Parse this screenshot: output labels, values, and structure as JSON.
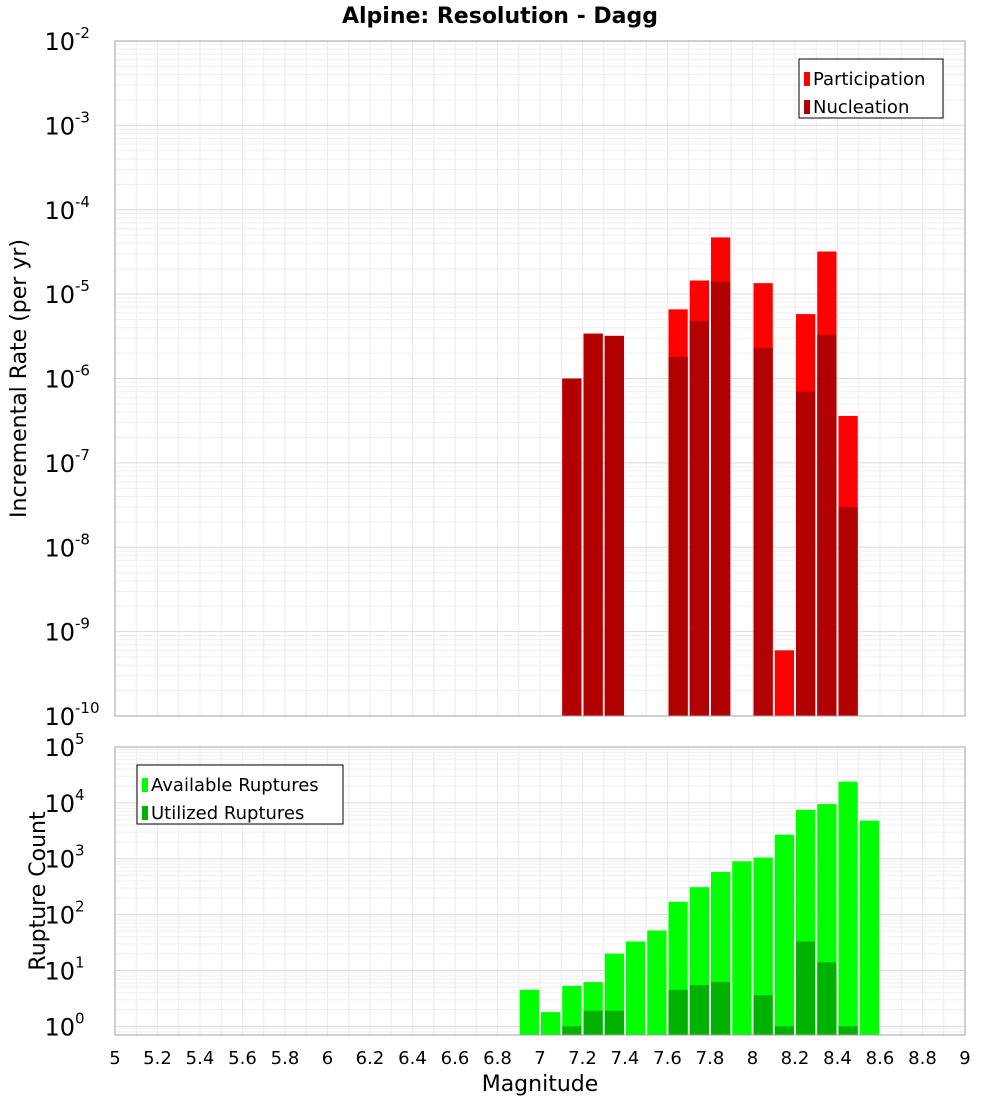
{
  "chart_data": [
    {
      "type": "bar",
      "title": "Alpine: Resolution - Dagg",
      "xlabel": "Magnitude",
      "ylabel": "Incremental Rate (per yr)",
      "xlim": [
        5,
        9
      ],
      "ylim": [
        1e-10,
        0.01
      ],
      "yscale": "log",
      "grid": true,
      "legend_position": "top-right",
      "bin_width": 0.1,
      "yticks": [
        {
          "base": "10",
          "exp": "-10"
        },
        {
          "base": "10",
          "exp": "-9"
        },
        {
          "base": "10",
          "exp": "-8"
        },
        {
          "base": "10",
          "exp": "-7"
        },
        {
          "base": "10",
          "exp": "-6"
        },
        {
          "base": "10",
          "exp": "-5"
        },
        {
          "base": "10",
          "exp": "-4"
        },
        {
          "base": "10",
          "exp": "-3"
        },
        {
          "base": "10",
          "exp": "-2"
        }
      ],
      "series": [
        {
          "name": "Participation",
          "color": "#ff0000",
          "points": [
            {
              "x": 7.15,
              "y": 1e-06
            },
            {
              "x": 7.25,
              "y": 3.4e-06
            },
            {
              "x": 7.35,
              "y": 3.2e-06
            },
            {
              "x": 7.65,
              "y": 6.6e-06
            },
            {
              "x": 7.75,
              "y": 1.45e-05
            },
            {
              "x": 7.85,
              "y": 4.7e-05
            },
            {
              "x": 8.05,
              "y": 1.35e-05
            },
            {
              "x": 8.15,
              "y": 6e-10
            },
            {
              "x": 8.25,
              "y": 5.8e-06
            },
            {
              "x": 8.35,
              "y": 3.2e-05
            },
            {
              "x": 8.45,
              "y": 3.6e-07
            }
          ]
        },
        {
          "name": "Nucleation",
          "color": "#b20000",
          "points": [
            {
              "x": 7.15,
              "y": 1e-06
            },
            {
              "x": 7.25,
              "y": 3.4e-06
            },
            {
              "x": 7.35,
              "y": 3.2e-06
            },
            {
              "x": 7.65,
              "y": 1.8e-06
            },
            {
              "x": 7.75,
              "y": 4.8e-06
            },
            {
              "x": 7.85,
              "y": 1.4e-05
            },
            {
              "x": 8.05,
              "y": 2.3e-06
            },
            {
              "x": 8.25,
              "y": 7e-07
            },
            {
              "x": 8.35,
              "y": 3.3e-06
            },
            {
              "x": 8.45,
              "y": 3e-08
            }
          ]
        }
      ]
    },
    {
      "type": "bar",
      "xlabel": "Magnitude",
      "ylabel": "Rupture Count",
      "xlim": [
        5,
        9
      ],
      "ylim": [
        0.7,
        100000
      ],
      "yscale": "log",
      "grid": true,
      "legend_position": "top-left",
      "bin_width": 0.1,
      "xticks": [
        "5",
        "5.2",
        "5.4",
        "5.6",
        "5.8",
        "6",
        "6.2",
        "6.4",
        "6.6",
        "6.8",
        "7",
        "7.2",
        "7.4",
        "7.6",
        "7.8",
        "8",
        "8.2",
        "8.4",
        "8.6",
        "8.8",
        "9"
      ],
      "yticks": [
        {
          "base": "10",
          "exp": "0",
          "value": 1
        },
        {
          "base": "10",
          "exp": "1",
          "value": 10
        },
        {
          "base": "10",
          "exp": "2",
          "value": 100
        },
        {
          "base": "10",
          "exp": "3",
          "value": 1000
        },
        {
          "base": "10",
          "exp": "4",
          "value": 10000
        },
        {
          "base": "10",
          "exp": "5",
          "value": 100000
        }
      ],
      "series": [
        {
          "name": "Available Ruptures",
          "color": "#00ff00",
          "points": [
            {
              "x": 6.95,
              "y": 4.5
            },
            {
              "x": 7.05,
              "y": 1.8
            },
            {
              "x": 7.15,
              "y": 5.3
            },
            {
              "x": 7.25,
              "y": 6.2
            },
            {
              "x": 7.35,
              "y": 20
            },
            {
              "x": 7.45,
              "y": 33
            },
            {
              "x": 7.55,
              "y": 52
            },
            {
              "x": 7.65,
              "y": 170
            },
            {
              "x": 7.75,
              "y": 310
            },
            {
              "x": 7.85,
              "y": 580
            },
            {
              "x": 7.95,
              "y": 900
            },
            {
              "x": 8.05,
              "y": 1050
            },
            {
              "x": 8.15,
              "y": 2700
            },
            {
              "x": 8.25,
              "y": 7500
            },
            {
              "x": 8.35,
              "y": 9500
            },
            {
              "x": 8.45,
              "y": 24000
            },
            {
              "x": 8.55,
              "y": 4800
            }
          ]
        },
        {
          "name": "Utilized Ruptures",
          "color": "#00b200",
          "points": [
            {
              "x": 7.15,
              "y": 1
            },
            {
              "x": 7.25,
              "y": 1.9
            },
            {
              "x": 7.35,
              "y": 1.9
            },
            {
              "x": 7.65,
              "y": 4.5
            },
            {
              "x": 7.75,
              "y": 5.5
            },
            {
              "x": 7.85,
              "y": 6.2
            },
            {
              "x": 8.05,
              "y": 3.6
            },
            {
              "x": 8.15,
              "y": 1
            },
            {
              "x": 8.25,
              "y": 33
            },
            {
              "x": 8.35,
              "y": 14
            },
            {
              "x": 8.45,
              "y": 1
            }
          ]
        }
      ]
    }
  ]
}
